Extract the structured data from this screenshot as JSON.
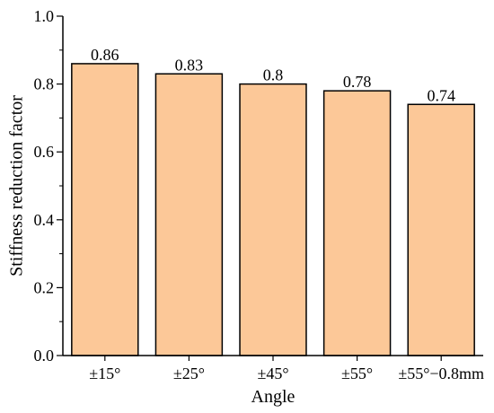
{
  "chart_data": {
    "type": "bar",
    "categories": [
      "±15°",
      "±25°",
      "±45°",
      "±55°",
      "±55°−0.8mm"
    ],
    "values": [
      0.86,
      0.83,
      0.8,
      0.78,
      0.74
    ],
    "data_labels": [
      "0.86",
      "0.83",
      "0.8",
      "0.78",
      "0.74"
    ],
    "xlabel": "Angle",
    "ylabel": "Stiffness reduction factor",
    "ylim": [
      0,
      1.0
    ],
    "yticks": [
      0.0,
      0.2,
      0.4,
      0.6,
      0.8,
      1.0
    ],
    "ytick_labels": [
      "0.0",
      "0.2",
      "0.4",
      "0.6",
      "0.8",
      "1.0"
    ],
    "grid": false,
    "colors": {
      "bar_fill": "#fcc898",
      "bar_stroke": "#000000",
      "axis": "#000000"
    }
  }
}
